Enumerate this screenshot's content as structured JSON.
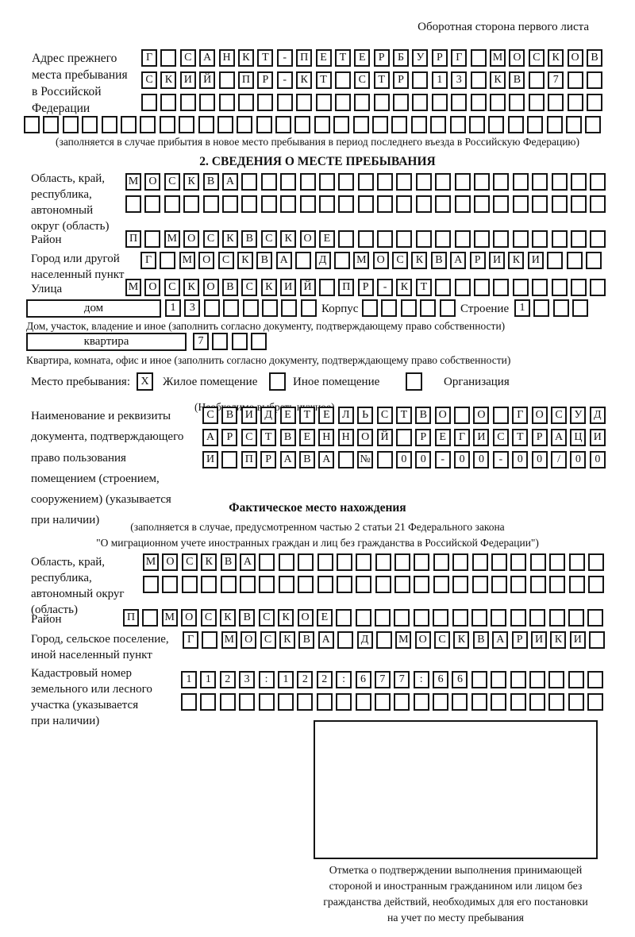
{
  "page": {
    "top_right_title": "Оборотная сторона первого листа"
  },
  "prev_address": {
    "label_lines": [
      "Адрес прежнего",
      "места пребывания",
      "в Российской",
      "Федерации"
    ],
    "rows": [
      {
        "chars": "Г САНКТ-ПЕТЕРБУРГ МОСКОВ",
        "count": 24
      },
      {
        "chars": "СКИЙ ПР-КТ СТР 13 КВ 7",
        "count": 24
      },
      {
        "chars": "",
        "count": 24
      },
      {
        "chars": "",
        "count": 30
      }
    ],
    "note": "(заполняется в случае прибытия в новое место пребывания в период последнего въезда в Российскую Федерацию)"
  },
  "section2": {
    "heading": "2. СВЕДЕНИЯ О МЕСТЕ ПРЕБЫВАНИЯ",
    "region": {
      "label_lines": [
        "Область, край,",
        "республика,",
        "автономный",
        "округ (область)"
      ],
      "rows": [
        {
          "chars": "МОСКВА",
          "count": 25
        },
        {
          "chars": "",
          "count": 25
        }
      ]
    },
    "district": {
      "label": "Район",
      "row": {
        "chars": "П МОСКВСКОЕ",
        "count": 25
      }
    },
    "city": {
      "label_lines": [
        "Город или другой",
        "населенный пункт"
      ],
      "row": {
        "chars": "Г МОСКВА Д МОСКВАРИКИ",
        "count": 24
      }
    },
    "street": {
      "label": "Улица",
      "row": {
        "chars": "МОСКОВСКИЙ ПР-КТ",
        "count": 25
      }
    },
    "house": {
      "box_label": "дом",
      "cells": {
        "chars": "13",
        "count": 8
      },
      "korpus_label": "Корпус",
      "korpus_cells": {
        "chars": "",
        "count": 5
      },
      "stroenie_label": "Строение",
      "stroenie_cells": {
        "chars": "1",
        "count": 4
      },
      "note": "Дом, участок, владение и иное (заполнить согласно документу, подтверждающему право собственности)"
    },
    "apartment": {
      "box_label": "квартира",
      "cells": {
        "chars": "7",
        "count": 4
      },
      "note": "Квартира, комната, офис и иное (заполнить согласно документу, подтверждающему право собственности)"
    },
    "stay_place": {
      "label": "Место пребывания:",
      "options": [
        {
          "label": "Жилое помещение",
          "mark": "X"
        },
        {
          "label": "Иное помещение",
          "mark": ""
        },
        {
          "label": "Организация",
          "mark": ""
        }
      ],
      "note": "(Необходимо выбрать нужное)"
    },
    "document": {
      "label_lines": [
        "Наименование и реквизиты",
        "документа, подтверждающего",
        "право пользования",
        "помещением (строением,",
        "сооружением) (указывается",
        "при наличии)"
      ],
      "rows": [
        {
          "chars": "СВИДЕТЕЛЬСТВО О ГОСУД",
          "count": 21
        },
        {
          "chars": "АРСТВЕННОЙ РЕГИСТРАЦИ",
          "count": 21
        },
        {
          "chars": "И ПРАВА № 00-00-00/000",
          "count": 21
        }
      ]
    }
  },
  "actual_location": {
    "heading": "Фактическое место нахождения",
    "note_lines": [
      "(заполняется в случае, предусмотренном частью 2 статьи 21 Федерального закона",
      "\"О миграционном учете иностранных граждан и лиц без гражданства в Российской Федерации\")"
    ],
    "region": {
      "label_lines": [
        "Область, край,",
        "республика,",
        "автономный округ",
        "(область)"
      ],
      "rows": [
        {
          "chars": "МОСКВА",
          "count": 24
        },
        {
          "chars": "",
          "count": 24
        }
      ]
    },
    "district": {
      "label": "Район",
      "row": {
        "chars": "П МОСКВСКОЕ",
        "count": 25
      }
    },
    "city": {
      "label_lines": [
        "Город, сельское поселение,",
        "иной населенный пункт"
      ],
      "row": {
        "chars": "Г МОСКВА Д МОСКВАРИКИ",
        "count": 22
      }
    },
    "cadastral": {
      "label_lines": [
        "Кадастровый номер",
        "земельного или лесного",
        "участка (указывается",
        "при наличии)"
      ],
      "rows": [
        {
          "chars": "1123:122:677:66",
          "count": 22
        },
        {
          "chars": "",
          "count": 22
        }
      ]
    },
    "stamp_caption_lines": [
      "Отметка о подтверждении выполнения принимающей",
      "стороной и иностранным гражданином или лицом без",
      "гражданства действий, необходимых для его постановки",
      "на учет по месту пребывания"
    ]
  }
}
